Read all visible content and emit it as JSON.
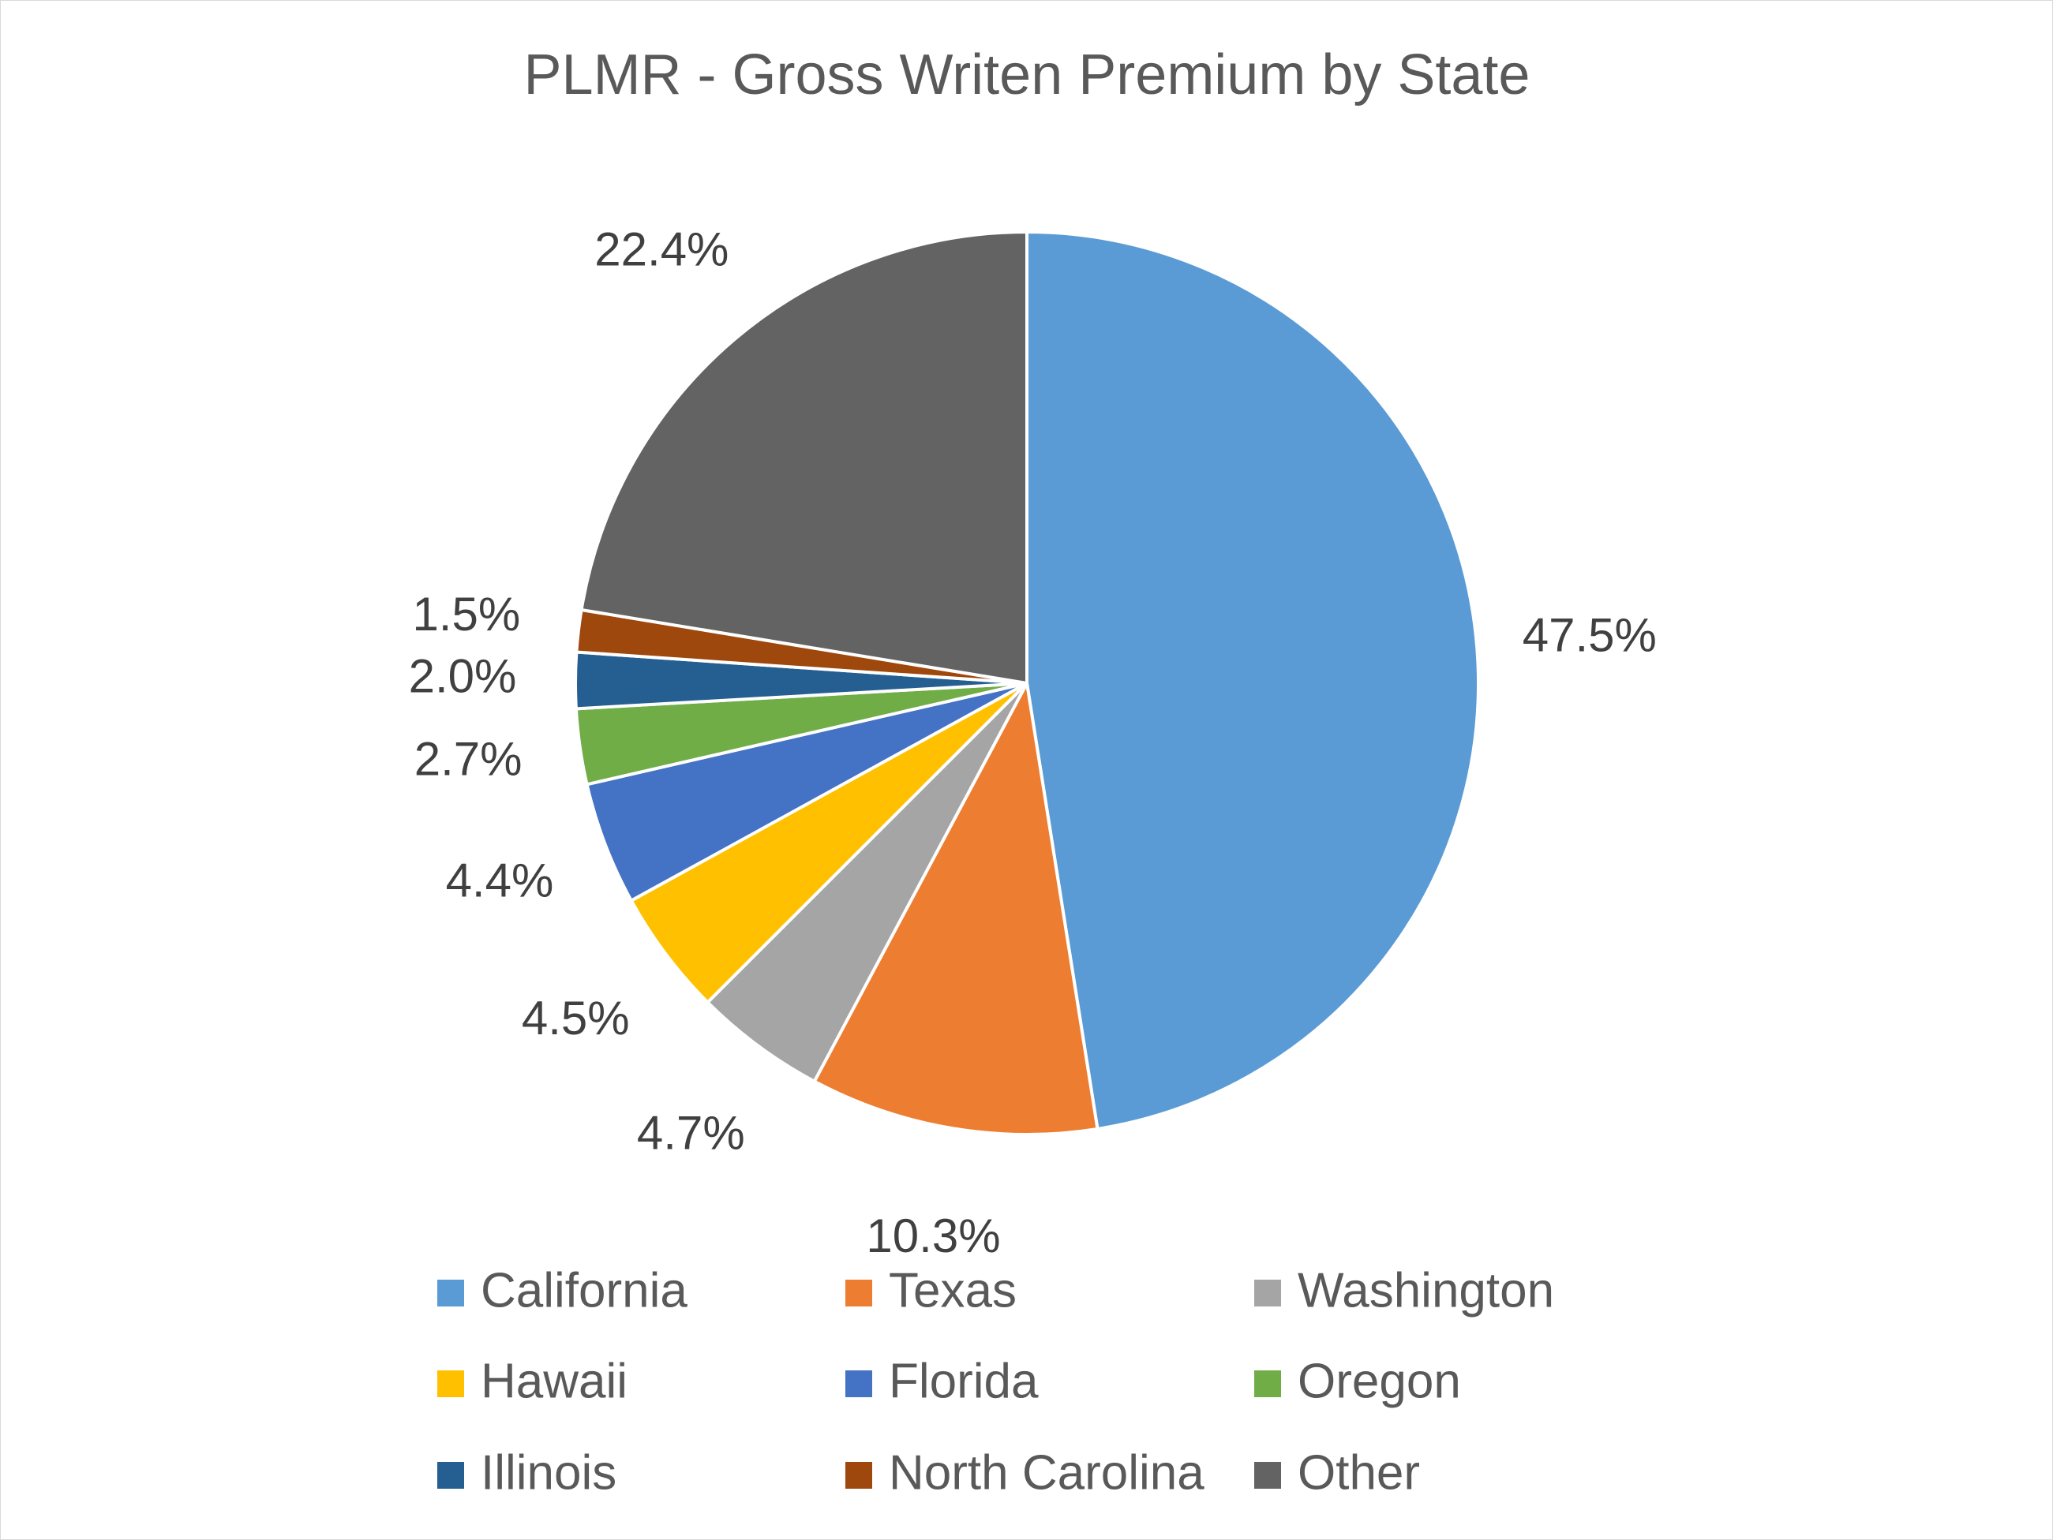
{
  "chart_data": {
    "type": "pie",
    "title": "PLMR - Gross Writen Premium by State",
    "start_angle_deg": 0,
    "direction": "clockwise",
    "legend_position": "bottom",
    "slices": [
      {
        "name": "California",
        "value": 47.5,
        "label": "47.5%",
        "color": "#5B9BD5"
      },
      {
        "name": "Texas",
        "value": 10.3,
        "label": "10.3%",
        "color": "#ED7D31"
      },
      {
        "name": "Washington",
        "value": 4.7,
        "label": "4.7%",
        "color": "#A5A5A5"
      },
      {
        "name": "Hawaii",
        "value": 4.5,
        "label": "4.5%",
        "color": "#FFC000"
      },
      {
        "name": "Florida",
        "value": 4.4,
        "label": "4.4%",
        "color": "#4472C4"
      },
      {
        "name": "Oregon",
        "value": 2.7,
        "label": "2.7%",
        "color": "#70AD47"
      },
      {
        "name": "Illinois",
        "value": 2.0,
        "label": "2.0%",
        "color": "#255E91"
      },
      {
        "name": "North Carolina",
        "value": 1.5,
        "label": "1.5%",
        "color": "#9E480E"
      },
      {
        "name": "Other",
        "value": 22.4,
        "label": "22.4%",
        "color": "#636363"
      }
    ]
  }
}
